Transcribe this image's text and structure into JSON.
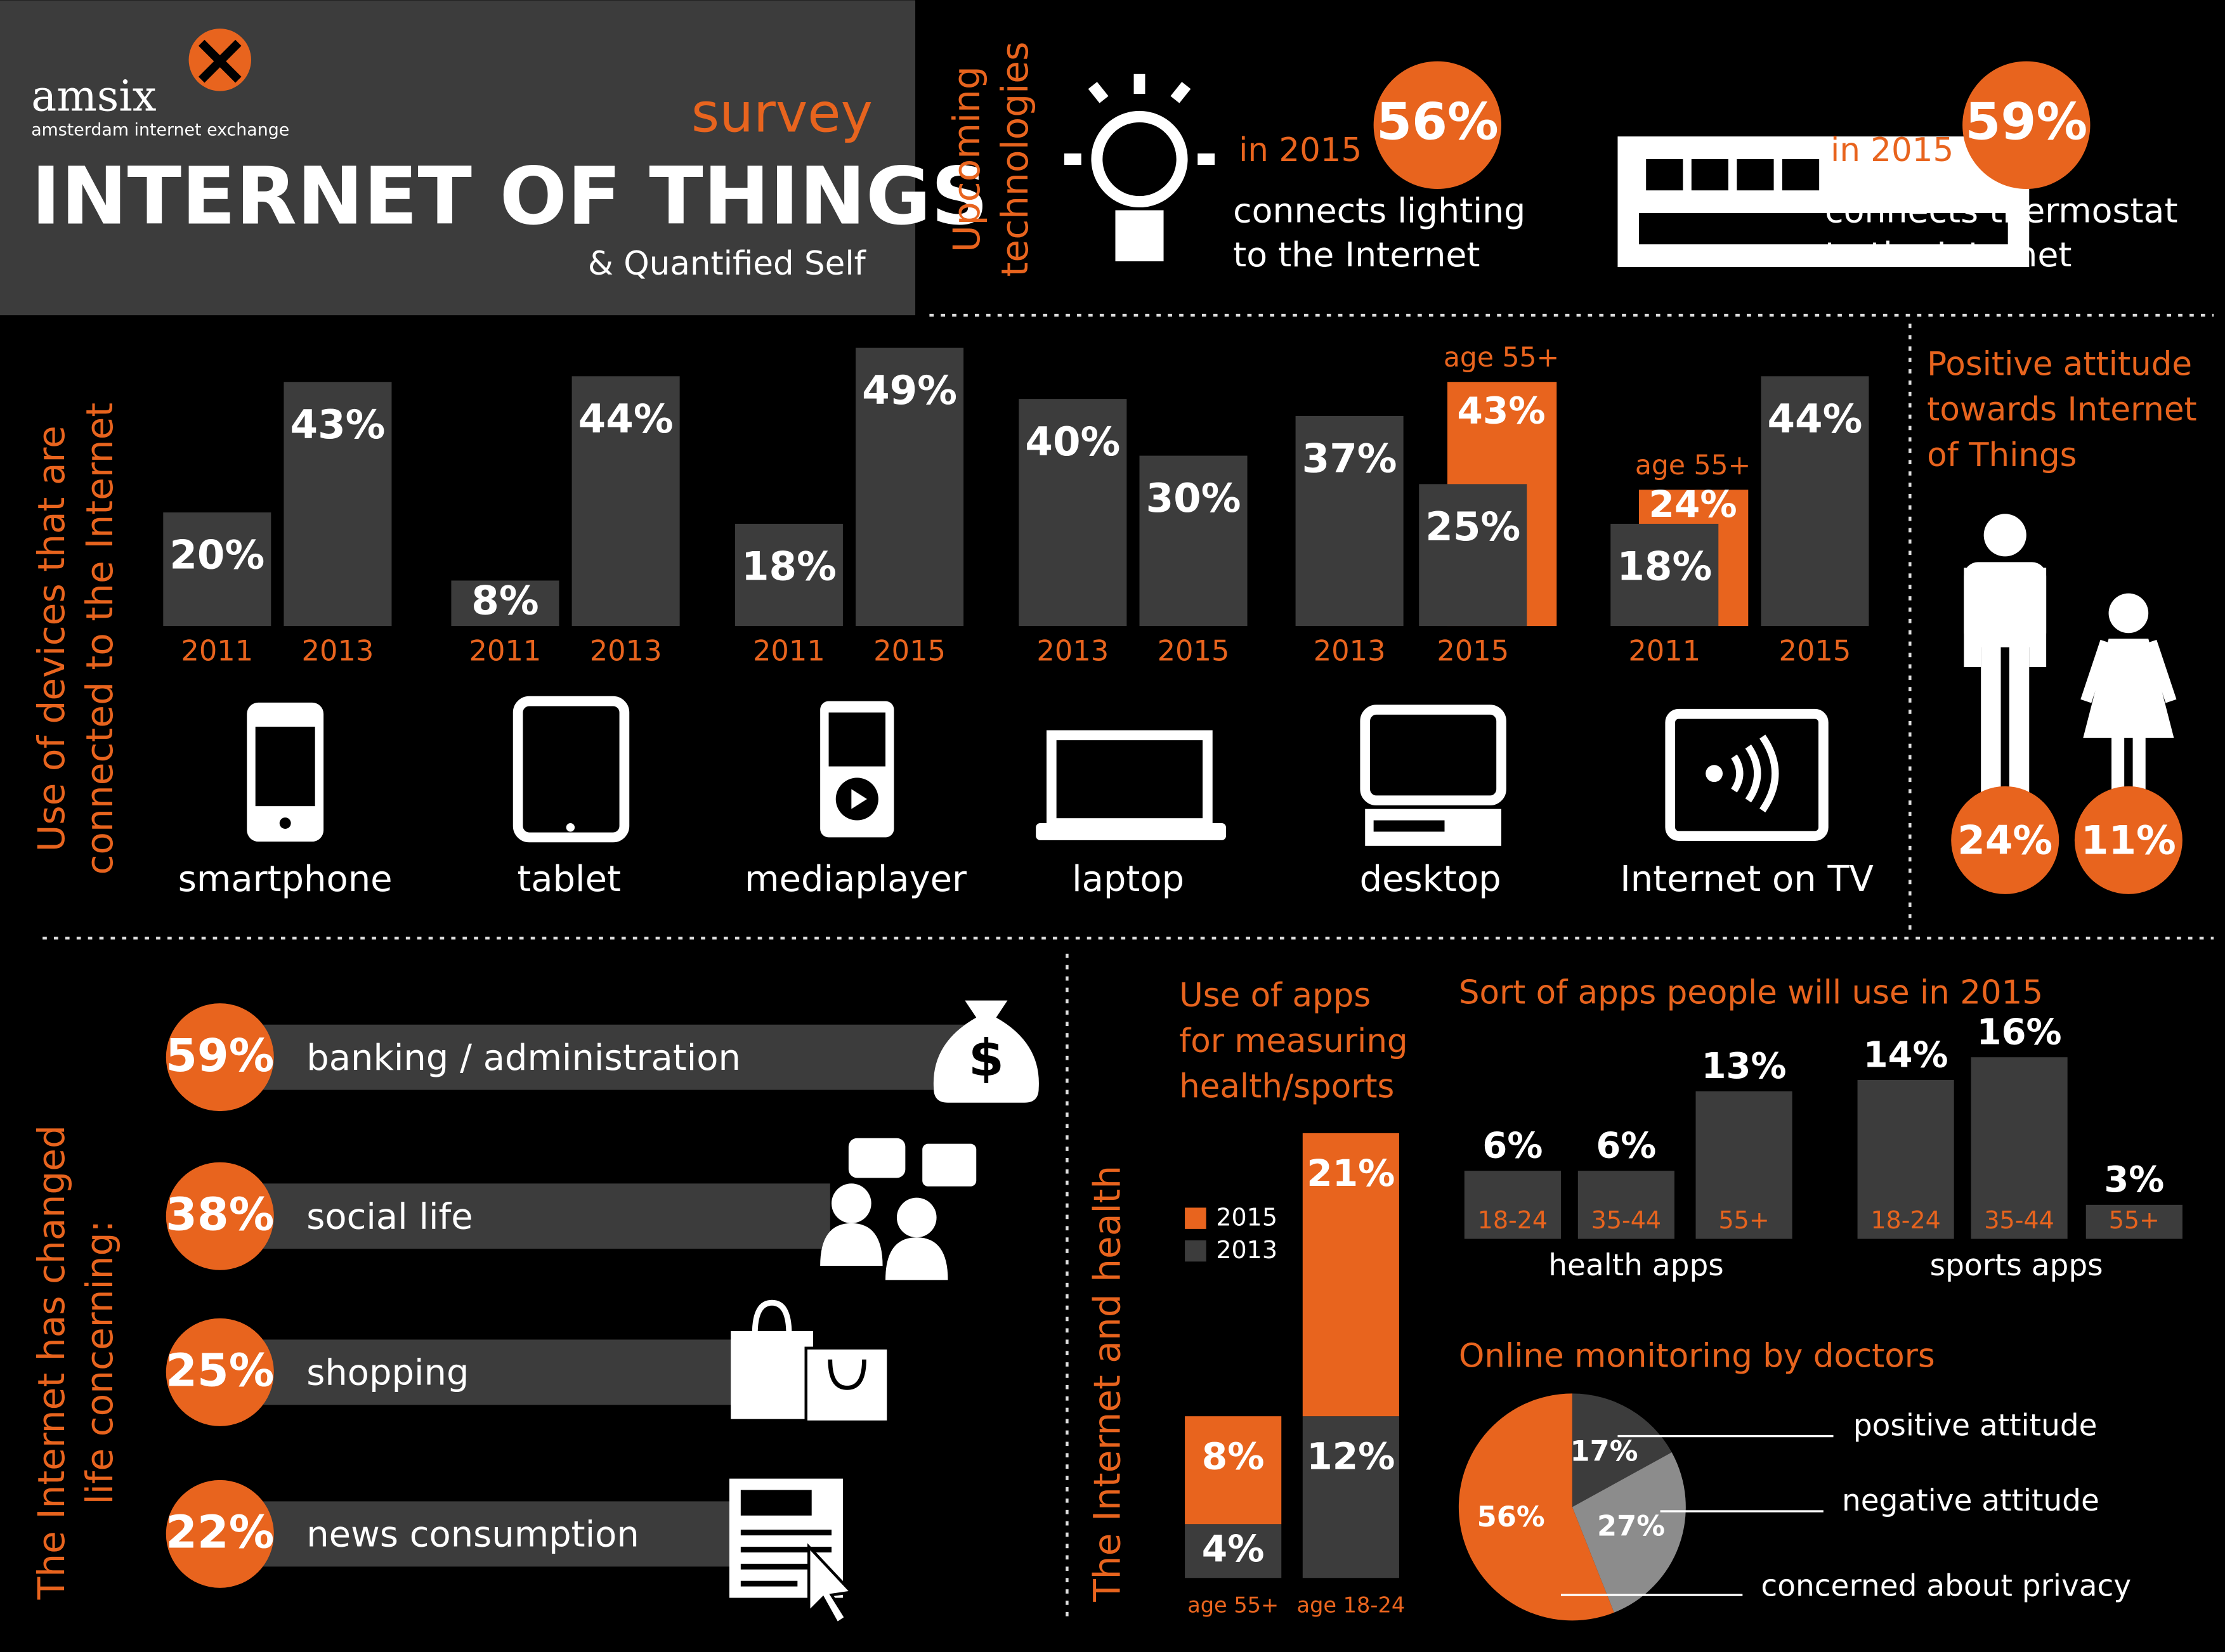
{
  "header": {
    "logo": "amsix",
    "logo_tagline": "amsterdam internet exchange",
    "kicker": "survey",
    "title": "INTERNET OF THINGS",
    "subtitle": "& Quantified Self"
  },
  "upcoming": {
    "label": [
      "Upcoming",
      "technologies"
    ],
    "items": [
      {
        "year": "in 2015",
        "value": "56%",
        "text": [
          "connects lighting",
          "to the Internet"
        ]
      },
      {
        "year": "in 2015",
        "value": "59%",
        "text": [
          "connects thermostat",
          "to the Internet"
        ]
      }
    ]
  },
  "devices": {
    "type": "bar",
    "label": [
      "Use of devices that are",
      "connected to the Internet"
    ],
    "color": "#3c3c3c",
    "groups": [
      {
        "name": "smartphone",
        "categories": [
          "2011",
          "2013"
        ],
        "values": [
          20,
          43
        ],
        "value_labels": [
          "20%",
          "43%"
        ]
      },
      {
        "name": "tablet",
        "categories": [
          "2011",
          "2013"
        ],
        "values": [
          8,
          44
        ],
        "value_labels": [
          "8%",
          "44%"
        ]
      },
      {
        "name": "mediaplayer",
        "categories": [
          "2011",
          "2015"
        ],
        "values": [
          18,
          49
        ],
        "value_labels": [
          "18%",
          "49%"
        ]
      },
      {
        "name": "laptop",
        "categories": [
          "2013",
          "2015"
        ],
        "values": [
          40,
          30
        ],
        "value_labels": [
          "40%",
          "30%"
        ]
      },
      {
        "name": "desktop",
        "categories": [
          "2013",
          "2015"
        ],
        "values": [
          37,
          25
        ],
        "value_labels": [
          "37%",
          "25%"
        ],
        "age_55_plus": {
          "label": "age 55+",
          "color": "#e8641e",
          "values": [
            null,
            43
          ],
          "value_labels": [
            null,
            "43%"
          ]
        }
      },
      {
        "name": "Internet on TV",
        "categories": [
          "2011",
          "2015"
        ],
        "values": [
          18,
          44
        ],
        "value_labels": [
          "18%",
          "44%"
        ],
        "age_55_plus": {
          "label": "age 55+",
          "color": "#e8641e",
          "values": [
            24,
            null
          ],
          "value_labels": [
            "24%",
            null
          ]
        }
      }
    ]
  },
  "attitude": {
    "title": [
      "Positive attitude",
      "towards Internet",
      "of Things"
    ],
    "values": [
      "24%",
      "11%"
    ]
  },
  "life": {
    "label": [
      "The Internet has changed",
      "life concerning:"
    ],
    "items": [
      {
        "value": "59%",
        "text": "banking / administration"
      },
      {
        "value": "38%",
        "text": "social life"
      },
      {
        "value": "25%",
        "text": "shopping"
      },
      {
        "value": "22%",
        "text": "news consumption"
      }
    ]
  },
  "health": {
    "type": "bar",
    "stacked": true,
    "label": "The Internet and health",
    "title": [
      "Use of apps",
      "for measuring",
      "health/sports"
    ],
    "categories": [
      "age 55+",
      "age 18-24"
    ],
    "series": [
      {
        "name": "2015",
        "color": "#e8641e",
        "values": [
          8,
          21
        ],
        "value_labels": [
          "8%",
          "21%"
        ]
      },
      {
        "name": "2013",
        "color": "#3c3c3c",
        "values": [
          4,
          12
        ],
        "value_labels": [
          "4%",
          "12%"
        ]
      }
    ]
  },
  "apps": {
    "type": "bar",
    "title": "Sort of apps people will use in 2015",
    "color": "#3c3c3c",
    "groups": [
      {
        "name": "health apps",
        "categories": [
          "18-24",
          "35-44",
          "55+"
        ],
        "values": [
          6,
          6,
          13
        ],
        "value_labels": [
          "6%",
          "6%",
          "13%"
        ]
      },
      {
        "name": "sports apps",
        "categories": [
          "18-24",
          "35-44",
          "55+"
        ],
        "values": [
          14,
          16,
          3
        ],
        "value_labels": [
          "14%",
          "16%",
          "3%"
        ]
      }
    ]
  },
  "monitoring": {
    "type": "pie",
    "title": "Online monitoring by doctors",
    "categories": [
      "positive attitude",
      "negative attitude",
      "concerned about privacy"
    ],
    "values": [
      17,
      27,
      56
    ],
    "value_labels": [
      "17%",
      "27%",
      "56%"
    ],
    "colors": [
      "#3c3c3c",
      "#8c8c8c",
      "#e8641e"
    ]
  }
}
